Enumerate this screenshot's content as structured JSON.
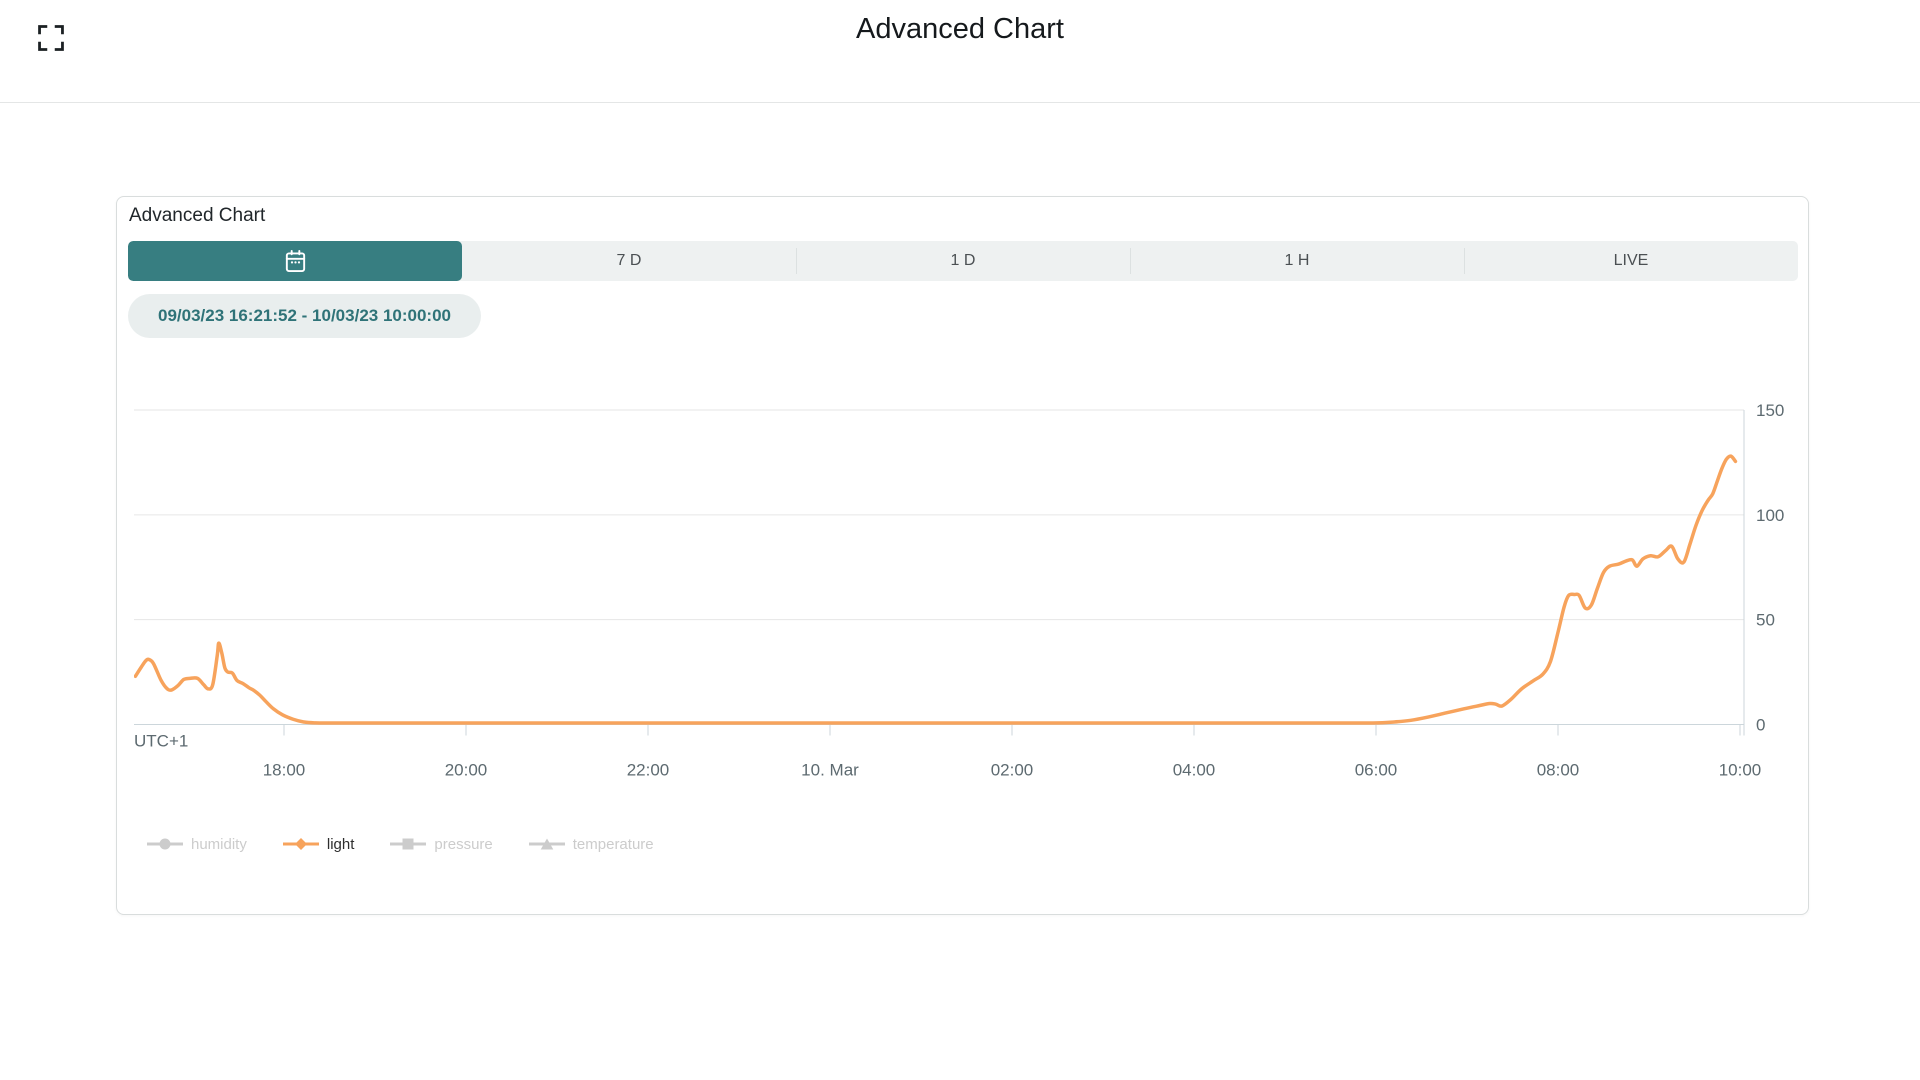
{
  "header": {
    "title": "Advanced Chart",
    "fullscreen_icon": "fullscreen-icon"
  },
  "card": {
    "title": "Advanced Chart",
    "tabs": [
      {
        "id": "custom-range",
        "label": "",
        "icon": "calendar-icon",
        "selected": true
      },
      {
        "id": "7d",
        "label": "7 D",
        "selected": false
      },
      {
        "id": "1d",
        "label": "1 D",
        "selected": false
      },
      {
        "id": "1h",
        "label": "1 H",
        "selected": false
      },
      {
        "id": "live",
        "label": "LIVE",
        "selected": false
      }
    ],
    "date_range": "09/03/23 16:21:52 - 10/03/23 10:00:00"
  },
  "colors": {
    "accent_teal": "#377e81",
    "badge_bg": "#e9eeee",
    "badge_text": "#2f7378",
    "tabbar_bg": "#eef1f1",
    "series_orange": "#f7a35c",
    "legend_disabled": "#cccccc",
    "legend_active_text": "#2d2d2d",
    "axis_label": "#5d6a70",
    "gridline": "#e6e6e6",
    "axis_line": "#ccd6db"
  },
  "chart_data": {
    "type": "line",
    "title": "",
    "timezone_label": "UTC+1",
    "t_unit": "minutes since 09/03/23 16:00 (UTC+1)",
    "x_axis": {
      "tick_labels": [
        "18:00",
        "20:00",
        "22:00",
        "10. Mar",
        "02:00",
        "04:00",
        "06:00",
        "08:00",
        "10:00"
      ],
      "tick_minutes": [
        120,
        240,
        360,
        480,
        600,
        720,
        840,
        960,
        1080
      ],
      "range_minutes": [
        21.9,
        1080
      ]
    },
    "y_axis": {
      "position": "right",
      "tick_labels": [
        "0",
        "50",
        "100",
        "150"
      ],
      "ticks": [
        0,
        50,
        100,
        150
      ],
      "range": [
        0,
        150
      ]
    },
    "grid": true,
    "legend_position": "bottom-left",
    "series": [
      {
        "name": "humidity",
        "enabled": false,
        "marker": "circle",
        "color": "#cccccc",
        "points": []
      },
      {
        "name": "light",
        "enabled": true,
        "marker": "diamond",
        "color": "#f7a35c",
        "points": [
          [
            22,
            23
          ],
          [
            26,
            27.5
          ],
          [
            29,
            30.5
          ],
          [
            31,
            31
          ],
          [
            34,
            29
          ],
          [
            39,
            21
          ],
          [
            43,
            17
          ],
          [
            46,
            16.5
          ],
          [
            50,
            18.5
          ],
          [
            54,
            21.5
          ],
          [
            58,
            22
          ],
          [
            63,
            22
          ],
          [
            67,
            19
          ],
          [
            70,
            17
          ],
          [
            73,
            19
          ],
          [
            76,
            33
          ],
          [
            77,
            38.8
          ],
          [
            79,
            34
          ],
          [
            81,
            27
          ],
          [
            83,
            25
          ],
          [
            86,
            24.5
          ],
          [
            89,
            21
          ],
          [
            93,
            19.5
          ],
          [
            97,
            17.5
          ],
          [
            100,
            16.3
          ],
          [
            104,
            14
          ],
          [
            108,
            11
          ],
          [
            113,
            7.5
          ],
          [
            119,
            4.6
          ],
          [
            126,
            2.5
          ],
          [
            133,
            1.2
          ],
          [
            140,
            0.8
          ],
          [
            160,
            0.7
          ],
          [
            240,
            0.7
          ],
          [
            360,
            0.7
          ],
          [
            480,
            0.7
          ],
          [
            600,
            0.7
          ],
          [
            720,
            0.7
          ],
          [
            800,
            0.7
          ],
          [
            838,
            0.7
          ],
          [
            852,
            1.2
          ],
          [
            863,
            2
          ],
          [
            874,
            3.5
          ],
          [
            886,
            5.5
          ],
          [
            898,
            7.5
          ],
          [
            908,
            9
          ],
          [
            915,
            10
          ],
          [
            919,
            9.7
          ],
          [
            923,
            8.8
          ],
          [
            929,
            12
          ],
          [
            936,
            17
          ],
          [
            944,
            21
          ],
          [
            950,
            24
          ],
          [
            955,
            30
          ],
          [
            960,
            44
          ],
          [
            964,
            56
          ],
          [
            967,
            61.5
          ],
          [
            971,
            62
          ],
          [
            974,
            61.5
          ],
          [
            978,
            55.5
          ],
          [
            982,
            57
          ],
          [
            986,
            65
          ],
          [
            990,
            72.5
          ],
          [
            994,
            75.5
          ],
          [
            1000,
            76.5
          ],
          [
            1005,
            78
          ],
          [
            1009,
            78.5
          ],
          [
            1012,
            75.5
          ],
          [
            1016,
            79
          ],
          [
            1021,
            80.5
          ],
          [
            1026,
            80
          ],
          [
            1031,
            83
          ],
          [
            1035,
            85
          ],
          [
            1039,
            79
          ],
          [
            1043,
            77.5
          ],
          [
            1047,
            86
          ],
          [
            1051,
            95
          ],
          [
            1055,
            102
          ],
          [
            1059,
            107
          ],
          [
            1062,
            110
          ],
          [
            1065,
            116
          ],
          [
            1068,
            122
          ],
          [
            1071,
            126.5
          ],
          [
            1074,
            128
          ],
          [
            1077,
            125.5
          ]
        ]
      },
      {
        "name": "pressure",
        "enabled": false,
        "marker": "square",
        "color": "#cccccc",
        "points": []
      },
      {
        "name": "temperature",
        "enabled": false,
        "marker": "triangle",
        "color": "#cccccc",
        "points": []
      }
    ]
  }
}
